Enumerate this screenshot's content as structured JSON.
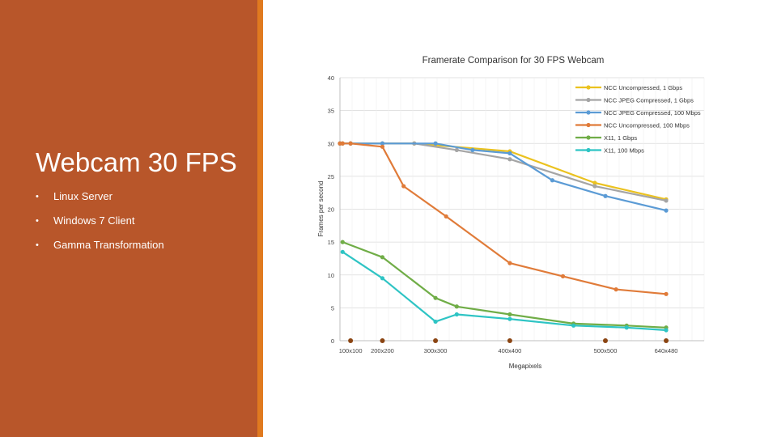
{
  "slide": {
    "title": "Webcam 30 FPS",
    "bullets": [
      "Linux Server",
      "Windows 7 Client",
      "Gamma Transformation"
    ],
    "colors": {
      "panel": "#b8562a",
      "accent": "#e07a1f",
      "text": "#ffffff"
    }
  },
  "chart_data": {
    "type": "line",
    "title": "Framerate Comparison for 30 FPS Webcam",
    "xlabel": "Megapixels",
    "ylabel": "Frames per second",
    "ylim": [
      0,
      40
    ],
    "yticks": [
      0,
      5,
      10,
      15,
      20,
      25,
      30,
      35,
      40
    ],
    "xlim": [
      0.0,
      0.343
    ],
    "xtick_positions": [
      0.01,
      0.04,
      0.09,
      0.16,
      0.25,
      0.3072
    ],
    "xtick_labels": [
      "100x100",
      "200x200",
      "300x300",
      "400x400",
      "500x500",
      "640x480"
    ],
    "legend_position": "top-right",
    "series": [
      {
        "name": "NCC Uncompressed, 1 Gbps",
        "color": "#ebc21f",
        "x": [
          0.0,
          0.0025,
          0.01,
          0.04,
          0.07,
          0.16,
          0.24,
          0.3072
        ],
        "y": [
          30,
          30,
          30,
          30,
          30,
          28.8,
          24,
          21.5
        ]
      },
      {
        "name": "NCC JPEG Compressed, 1 Gbps",
        "color": "#a5a5a5",
        "x": [
          0.0,
          0.0025,
          0.01,
          0.04,
          0.07,
          0.11,
          0.16,
          0.24,
          0.3072
        ],
        "y": [
          30,
          30,
          30,
          30,
          30,
          29,
          27.6,
          23.5,
          21.3
        ]
      },
      {
        "name": "NCC JPEG Compressed, 100 Mbps",
        "color": "#5b9bd5",
        "x": [
          0.0,
          0.01,
          0.04,
          0.09,
          0.125,
          0.16,
          0.2,
          0.25,
          0.3072
        ],
        "y": [
          30,
          30,
          30,
          30,
          29,
          28.5,
          24.4,
          22,
          19.8
        ]
      },
      {
        "name": "NCC Uncompressed, 100 Mbps",
        "color": "#e07b39",
        "x": [
          0.0,
          0.0025,
          0.01,
          0.04,
          0.06,
          0.1,
          0.16,
          0.21,
          0.26,
          0.3072
        ],
        "y": [
          30,
          30,
          30,
          29.5,
          23.5,
          18.9,
          11.8,
          9.8,
          7.8,
          7.1
        ]
      },
      {
        "name": "X11, 1 Gbps",
        "color": "#70ad47",
        "x": [
          0.0025,
          0.04,
          0.09,
          0.11,
          0.16,
          0.22,
          0.27,
          0.3072
        ],
        "y": [
          15,
          12.7,
          6.5,
          5.2,
          4.0,
          2.6,
          2.3,
          2.0
        ]
      },
      {
        "name": "X11, 100 Mbps",
        "color": "#2ec4c4",
        "x": [
          0.0025,
          0.04,
          0.09,
          0.11,
          0.16,
          0.22,
          0.27,
          0.3072
        ],
        "y": [
          13.5,
          9.5,
          2.9,
          4.0,
          3.3,
          2.3,
          2.0,
          1.6
        ]
      }
    ]
  }
}
